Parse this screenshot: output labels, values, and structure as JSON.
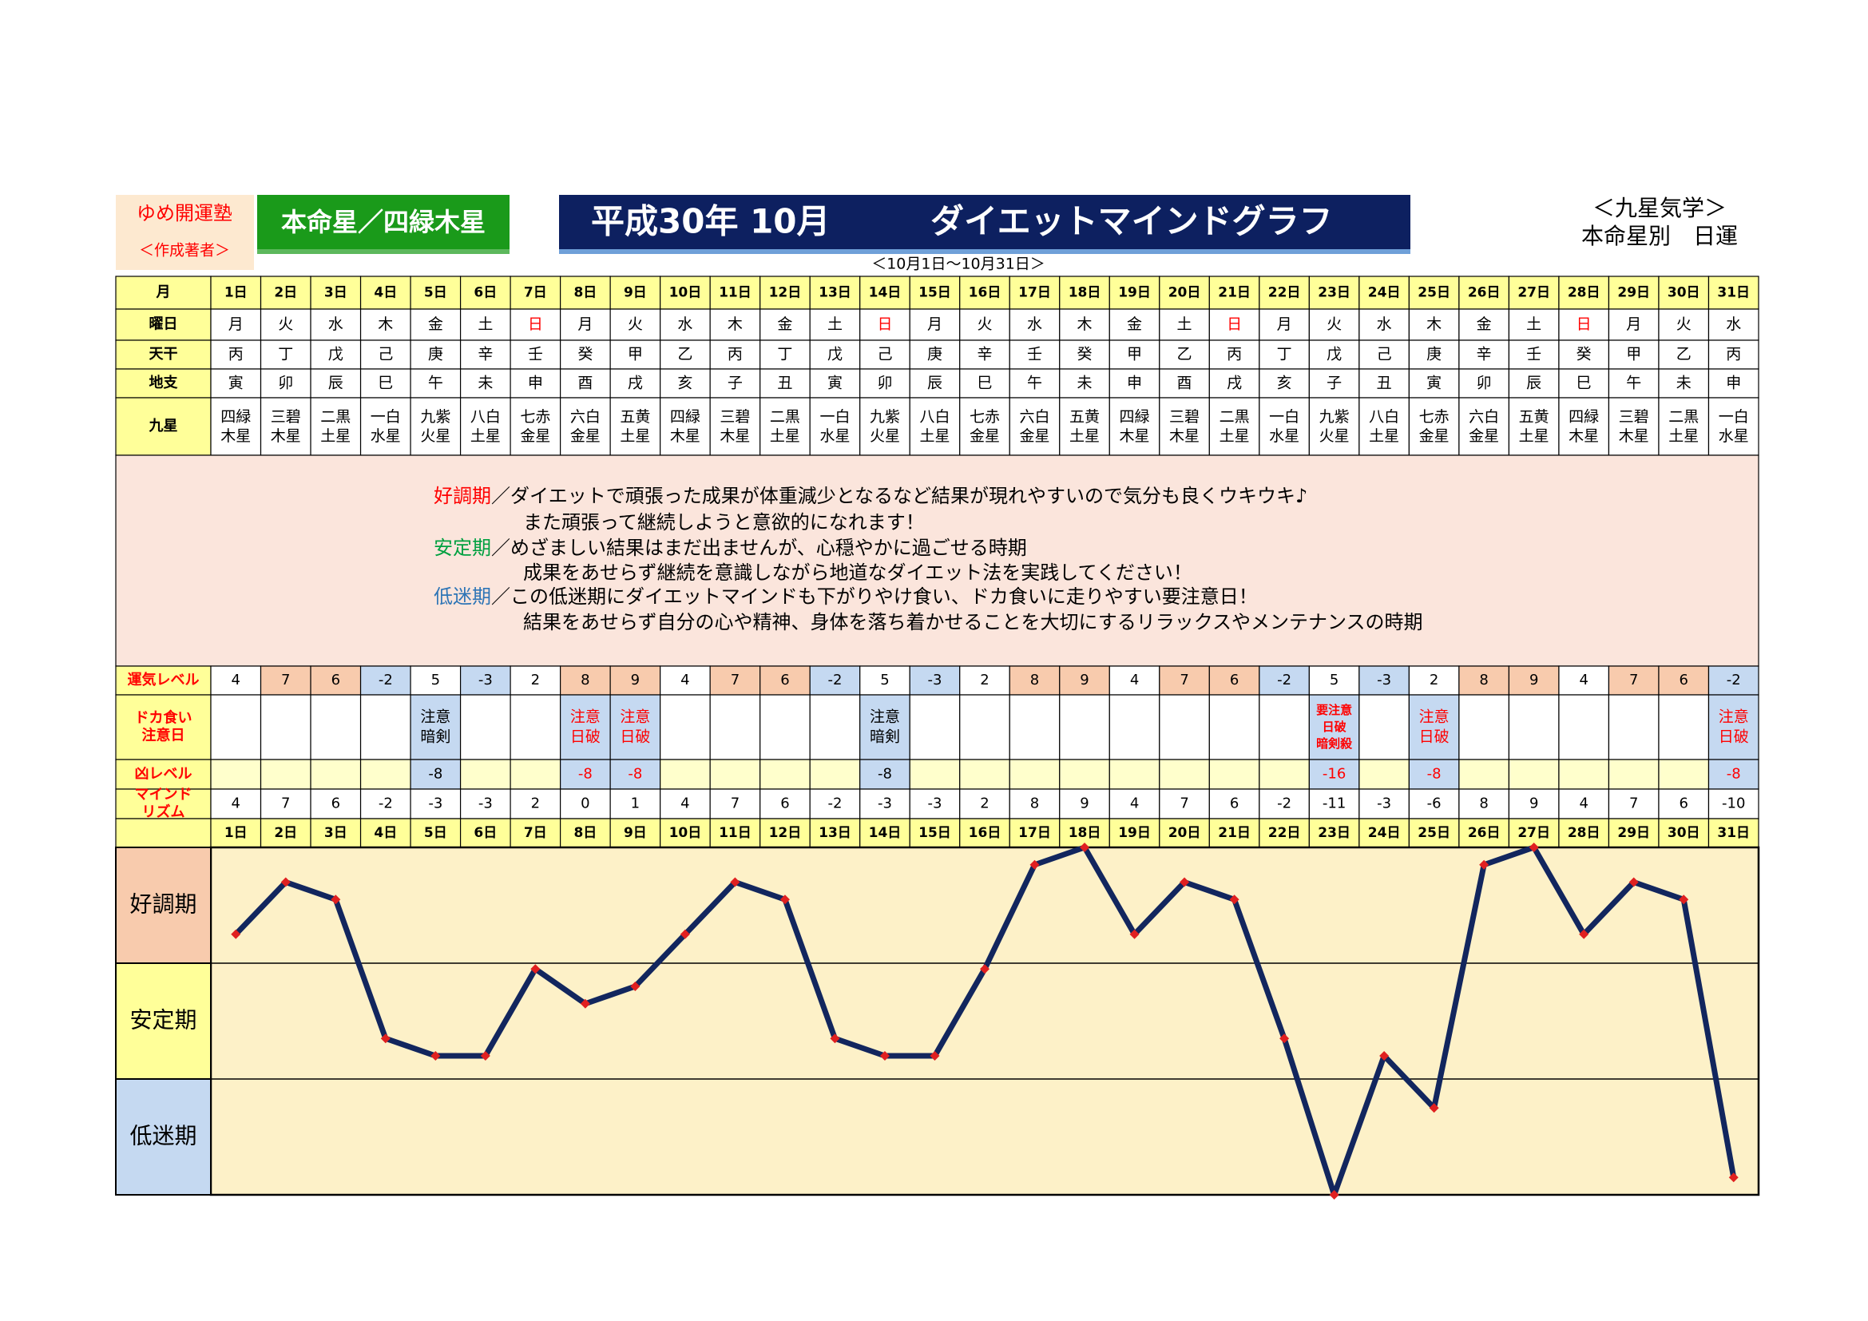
{
  "header": {
    "org": "ゆめ開運塾",
    "author": "＜作成著者＞",
    "star": "本命星／四緑木星",
    "title": "平成30年 10月",
    "title2": "ダイエットマインドグラフ",
    "period": "＜10月1日～10月31日＞",
    "system": "＜九星気学＞",
    "kind": "本命星別　日運"
  },
  "table": {
    "row_heads": {
      "month": "月",
      "weekday": "曜日",
      "tenkan": "天干",
      "chishi": "地支",
      "kyusei": "九星",
      "level": "運気レベル",
      "doka": [
        "ドカ食い",
        "注意日"
      ],
      "kyo": "凶レベル",
      "mind": [
        "マインド",
        "リズム"
      ]
    },
    "weekdays": [
      "月",
      "火",
      "水",
      "木",
      "金",
      "土",
      "日",
      "月",
      "火",
      "水",
      "木",
      "金",
      "土",
      "日",
      "月",
      "火",
      "水",
      "木",
      "金",
      "土",
      "日",
      "月",
      "火",
      "水",
      "木",
      "金",
      "土",
      "日",
      "月",
      "火",
      "水"
    ],
    "weekday_colors": [
      null,
      null,
      null,
      null,
      null,
      null,
      "#ff0000",
      null,
      null,
      null,
      null,
      null,
      null,
      "#ff0000",
      null,
      null,
      null,
      null,
      null,
      null,
      "#ff0000",
      null,
      null,
      null,
      null,
      null,
      null,
      "#ff0000",
      null,
      null,
      null
    ],
    "tenkan": [
      "丙",
      "丁",
      "戊",
      "己",
      "庚",
      "辛",
      "壬",
      "癸",
      "甲",
      "乙",
      "丙",
      "丁",
      "戊",
      "己",
      "庚",
      "辛",
      "壬",
      "癸",
      "甲",
      "乙",
      "丙",
      "丁",
      "戊",
      "己",
      "庚",
      "辛",
      "壬",
      "癸",
      "甲",
      "乙",
      "丙"
    ],
    "chishi": [
      "寅",
      "卯",
      "辰",
      "巳",
      "午",
      "未",
      "申",
      "酉",
      "戌",
      "亥",
      "子",
      "丑",
      "寅",
      "卯",
      "辰",
      "巳",
      "午",
      "未",
      "申",
      "酉",
      "戌",
      "亥",
      "子",
      "丑",
      "寅",
      "卯",
      "辰",
      "巳",
      "午",
      "未",
      "申"
    ],
    "kyusei": [
      "四緑木星",
      "三碧木星",
      "二黒土星",
      "一白水星",
      "九紫火星",
      "八白土星",
      "七赤金星",
      "六白金星",
      "五黄土星",
      "四緑木星",
      "三碧木星",
      "二黒土星",
      "一白水星",
      "九紫火星",
      "八白土星",
      "七赤金星",
      "六白金星",
      "五黄土星",
      "四緑木星",
      "三碧木星",
      "二黒土星",
      "一白水星",
      "九紫火星",
      "八白土星",
      "七赤金星",
      "六白金星",
      "五黄土星",
      "四緑木星",
      "三碧木星",
      "二黒土星",
      "一白水星"
    ],
    "message": [
      {
        "label_color": "#ff0000",
        "lines": [
          "／ダイエットで頑張った成果が体重減少となるなど結果が現れやすいので気分も良くウキウキ♪",
          "また頑張って継続しようと意欲的になれます！"
        ]
      },
      {
        "label_color": "#00a040",
        "lines": [
          "／めざましい結果はまだ出ませんが、心穏やかに過ごせる時期",
          "成果をあせらず継続を意識しながら地道なダイエット法を実践してください！"
        ]
      },
      {
        "label_color": "#2e75b6",
        "lines": [
          "／この低迷期にダイエットマインドも下がりやけ食い、ドカ食いに走りやすい要注意日！",
          "結果をあせらず自分の心や精神、身体を落ち着かせることを大切にするリラックスやメンテナンスの時期"
        ]
      }
    ],
    "level": [
      4,
      7,
      6,
      -2,
      5,
      -3,
      2,
      8,
      9,
      4,
      7,
      6,
      -2,
      5,
      -3,
      2,
      8,
      9,
      4,
      7,
      6,
      -2,
      5,
      -3,
      2,
      8,
      9,
      4,
      7,
      6,
      -2
    ],
    "level_colors": {
      "high": "#f8cbad",
      "low": "#c5d9f1"
    },
    "doka": [
      null,
      null,
      null,
      null,
      {
        "lines": [
          "注意",
          "暗剣"
        ],
        "color": "#000000"
      },
      null,
      null,
      {
        "lines": [
          "注意",
          "日破"
        ],
        "color": "#ff0000"
      },
      {
        "lines": [
          "注意",
          "日破"
        ],
        "color": "#ff0000"
      },
      null,
      null,
      null,
      null,
      {
        "lines": [
          "注意",
          "暗剣"
        ],
        "color": "#000000"
      },
      null,
      null,
      null,
      null,
      null,
      null,
      null,
      null,
      {
        "lines": [
          "要注意",
          "日破",
          "暗剣殺"
        ],
        "color": "#ff0000"
      },
      null,
      {
        "lines": [
          "注意",
          "日破"
        ],
        "color": "#ff0000"
      },
      null,
      null,
      null,
      null,
      null,
      {
        "lines": [
          "注意",
          "日破"
        ],
        "color": "#ff0000"
      }
    ],
    "kyo": [
      null,
      null,
      null,
      null,
      -8,
      null,
      null,
      -8,
      -8,
      null,
      null,
      null,
      null,
      -8,
      null,
      null,
      null,
      null,
      null,
      null,
      null,
      null,
      -16,
      null,
      -8,
      null,
      null,
      null,
      null,
      null,
      -8
    ]
  },
  "chart_data": {
    "type": "line",
    "categories": [
      "1日",
      "2日",
      "3日",
      "4日",
      "5日",
      "6日",
      "7日",
      "8日",
      "9日",
      "10日",
      "11日",
      "12日",
      "13日",
      "14日",
      "15日",
      "16日",
      "17日",
      "18日",
      "19日",
      "20日",
      "21日",
      "22日",
      "23日",
      "24日",
      "25日",
      "26日",
      "27日",
      "28日",
      "29日",
      "30日",
      "31日"
    ],
    "values": [
      4,
      7,
      6,
      -2,
      -3,
      -3,
      2,
      0,
      1,
      4,
      7,
      6,
      -2,
      -3,
      -3,
      2,
      8,
      9,
      4,
      7,
      6,
      -2,
      -11,
      -3,
      -6,
      8,
      9,
      4,
      7,
      6,
      -10
    ],
    "ylim": [
      -11,
      9
    ],
    "color": "#12265e",
    "marker_color": "#e02020",
    "bands": [
      {
        "name": "好調期",
        "color": "#f8cbad"
      },
      {
        "name": "安定期",
        "color": "#ffff99"
      },
      {
        "name": "低迷期",
        "color": "#c5d9f1"
      }
    ]
  }
}
